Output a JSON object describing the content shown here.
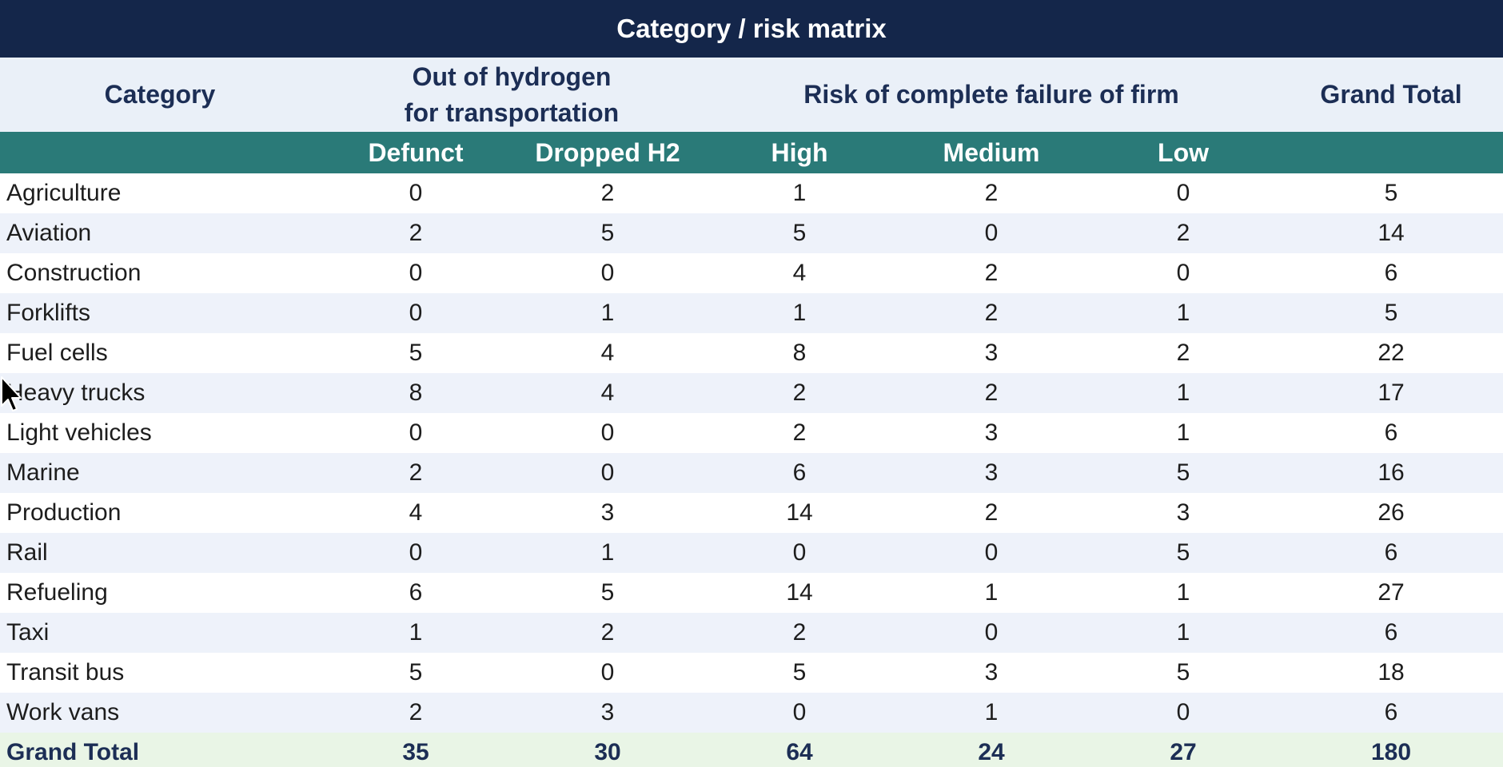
{
  "title": "Category / risk matrix",
  "header": {
    "category_label": "Category",
    "group_out_of_hydrogen": "Out of hydrogen for transportation",
    "group_risk": "Risk of complete failure of firm",
    "grand_total_label": "Grand Total",
    "subcolumns": [
      "Defunct",
      "Dropped H2",
      "High",
      "Medium",
      "Low"
    ]
  },
  "rows": [
    {
      "category": "Agriculture",
      "values": [
        "0",
        "2",
        "1",
        "2",
        "0"
      ],
      "total": "5"
    },
    {
      "category": "Aviation",
      "values": [
        "2",
        "5",
        "5",
        "0",
        "2"
      ],
      "total": "14"
    },
    {
      "category": "Construction",
      "values": [
        "0",
        "0",
        "4",
        "2",
        "0"
      ],
      "total": "6"
    },
    {
      "category": "Forklifts",
      "values": [
        "0",
        "1",
        "1",
        "2",
        "1"
      ],
      "total": "5"
    },
    {
      "category": "Fuel cells",
      "values": [
        "5",
        "4",
        "8",
        "3",
        "2"
      ],
      "total": "22"
    },
    {
      "category": "Heavy trucks",
      "values": [
        "8",
        "4",
        "2",
        "2",
        "1"
      ],
      "total": "17"
    },
    {
      "category": "Light vehicles",
      "values": [
        "0",
        "0",
        "2",
        "3",
        "1"
      ],
      "total": "6"
    },
    {
      "category": "Marine",
      "values": [
        "2",
        "0",
        "6",
        "3",
        "5"
      ],
      "total": "16"
    },
    {
      "category": "Production",
      "values": [
        "4",
        "3",
        "14",
        "2",
        "3"
      ],
      "total": "26"
    },
    {
      "category": "Rail",
      "values": [
        "0",
        "1",
        "0",
        "0",
        "5"
      ],
      "total": "6"
    },
    {
      "category": "Refueling",
      "values": [
        "6",
        "5",
        "14",
        "1",
        "1"
      ],
      "total": "27"
    },
    {
      "category": "Taxi",
      "values": [
        "1",
        "2",
        "2",
        "0",
        "1"
      ],
      "total": "6"
    },
    {
      "category": "Transit bus",
      "values": [
        "5",
        "0",
        "5",
        "3",
        "5"
      ],
      "total": "18"
    },
    {
      "category": "Work vans",
      "values": [
        "2",
        "3",
        "0",
        "1",
        "0"
      ],
      "total": "6"
    }
  ],
  "grand_total": {
    "label": "Grand Total",
    "values": [
      "35",
      "30",
      "64",
      "24",
      "27"
    ],
    "total": "180"
  },
  "cursor_icon": "mouse-pointer-icon",
  "colors": {
    "title_bg": "#14264a",
    "subheader_bg": "#2a7a78",
    "group_header_bg": "#eaf0f8",
    "alt_row_bg": "#eef2fa",
    "total_row_bg": "#e9f5e6"
  }
}
